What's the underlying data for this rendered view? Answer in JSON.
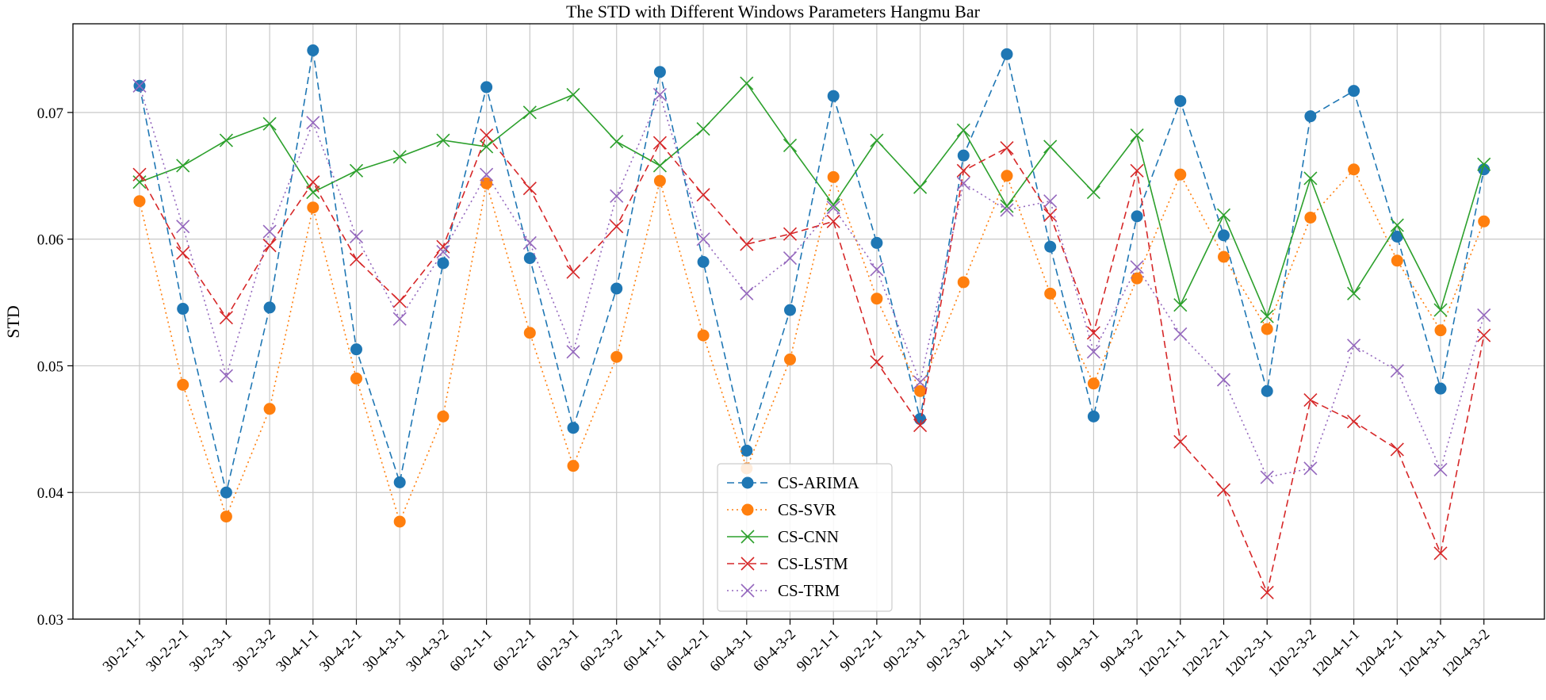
{
  "chart_data": {
    "type": "line",
    "title": "The STD with Different Windows Parameters Hangmu Bar",
    "xlabel": "",
    "ylabel": "STD",
    "ylim": [
      0.03,
      0.077
    ],
    "yticks": [
      0.03,
      0.04,
      0.05,
      0.06,
      0.07
    ],
    "ytick_labels": [
      "0.03",
      "0.04",
      "0.05",
      "0.06",
      "0.07"
    ],
    "grid": true,
    "legend_position": "bottom-center",
    "categories": [
      "30-2-1-1",
      "30-2-2-1",
      "30-2-3-1",
      "30-2-3-2",
      "30-4-1-1",
      "30-4-2-1",
      "30-4-3-1",
      "30-4-3-2",
      "60-2-1-1",
      "60-2-2-1",
      "60-2-3-1",
      "60-2-3-2",
      "60-4-1-1",
      "60-4-2-1",
      "60-4-3-1",
      "60-4-3-2",
      "90-2-1-1",
      "90-2-2-1",
      "90-2-3-1",
      "90-2-3-2",
      "90-4-1-1",
      "90-4-2-1",
      "90-4-3-1",
      "90-4-3-2",
      "120-2-1-1",
      "120-2-2-1",
      "120-2-3-1",
      "120-2-3-2",
      "120-4-1-1",
      "120-4-2-1",
      "120-4-3-1",
      "120-4-3-2"
    ],
    "series": [
      {
        "name": "CS-ARIMA",
        "color": "#1f77b4",
        "marker": "circle",
        "line": "dashed",
        "values": [
          0.0721,
          0.0545,
          0.04,
          0.0546,
          0.0749,
          0.0513,
          0.0408,
          0.0581,
          0.072,
          0.0585,
          0.0451,
          0.0561,
          0.0732,
          0.0582,
          0.0433,
          0.0544,
          0.0713,
          0.0597,
          0.0458,
          0.0666,
          0.0746,
          0.0594,
          0.046,
          0.0618,
          0.0709,
          0.0603,
          0.048,
          0.0697,
          0.0717,
          0.0602,
          0.0482,
          0.0655
        ]
      },
      {
        "name": "CS-SVR",
        "color": "#ff7f0e",
        "marker": "circle",
        "line": "dotted",
        "values": [
          0.063,
          0.0485,
          0.0381,
          0.0466,
          0.0625,
          0.049,
          0.0377,
          0.046,
          0.0644,
          0.0526,
          0.0421,
          0.0507,
          0.0646,
          0.0524,
          0.0419,
          0.0505,
          0.0649,
          0.0553,
          0.048,
          0.0566,
          0.065,
          0.0557,
          0.0486,
          0.0569,
          0.0651,
          0.0586,
          0.0529,
          0.0617,
          0.0655,
          0.0583,
          0.0528,
          0.0614
        ]
      },
      {
        "name": "CS-CNN",
        "color": "#2ca02c",
        "marker": "x",
        "line": "solid",
        "values": [
          0.0645,
          0.0658,
          0.0678,
          0.0691,
          0.0637,
          0.0654,
          0.0665,
          0.0678,
          0.0673,
          0.07,
          0.0714,
          0.0677,
          0.0658,
          0.0687,
          0.0723,
          0.0674,
          0.0627,
          0.0678,
          0.0641,
          0.0686,
          0.0626,
          0.0673,
          0.0637,
          0.0682,
          0.0548,
          0.0619,
          0.0539,
          0.0648,
          0.0557,
          0.0611,
          0.0544,
          0.0659
        ]
      },
      {
        "name": "CS-LSTM",
        "color": "#d62728",
        "marker": "x",
        "line": "dashed",
        "values": [
          0.0651,
          0.0589,
          0.0538,
          0.0595,
          0.0645,
          0.0584,
          0.0551,
          0.0594,
          0.0682,
          0.064,
          0.0574,
          0.061,
          0.0676,
          0.0635,
          0.0596,
          0.0604,
          0.0614,
          0.0503,
          0.0453,
          0.0654,
          0.0672,
          0.0619,
          0.0526,
          0.0654,
          0.044,
          0.0402,
          0.0321,
          0.0473,
          0.0456,
          0.0434,
          0.0352,
          0.0524
        ]
      },
      {
        "name": "CS-TRM",
        "color": "#9467bd",
        "marker": "x",
        "line": "dotted",
        "values": [
          0.0721,
          0.061,
          0.0492,
          0.0606,
          0.0692,
          0.0602,
          0.0537,
          0.059,
          0.0651,
          0.0597,
          0.0511,
          0.0634,
          0.0714,
          0.06,
          0.0557,
          0.0585,
          0.0625,
          0.0576,
          0.0487,
          0.0644,
          0.0623,
          0.063,
          0.0511,
          0.0578,
          0.0525,
          0.0489,
          0.0412,
          0.0419,
          0.0516,
          0.0496,
          0.0418,
          0.054
        ]
      }
    ]
  }
}
